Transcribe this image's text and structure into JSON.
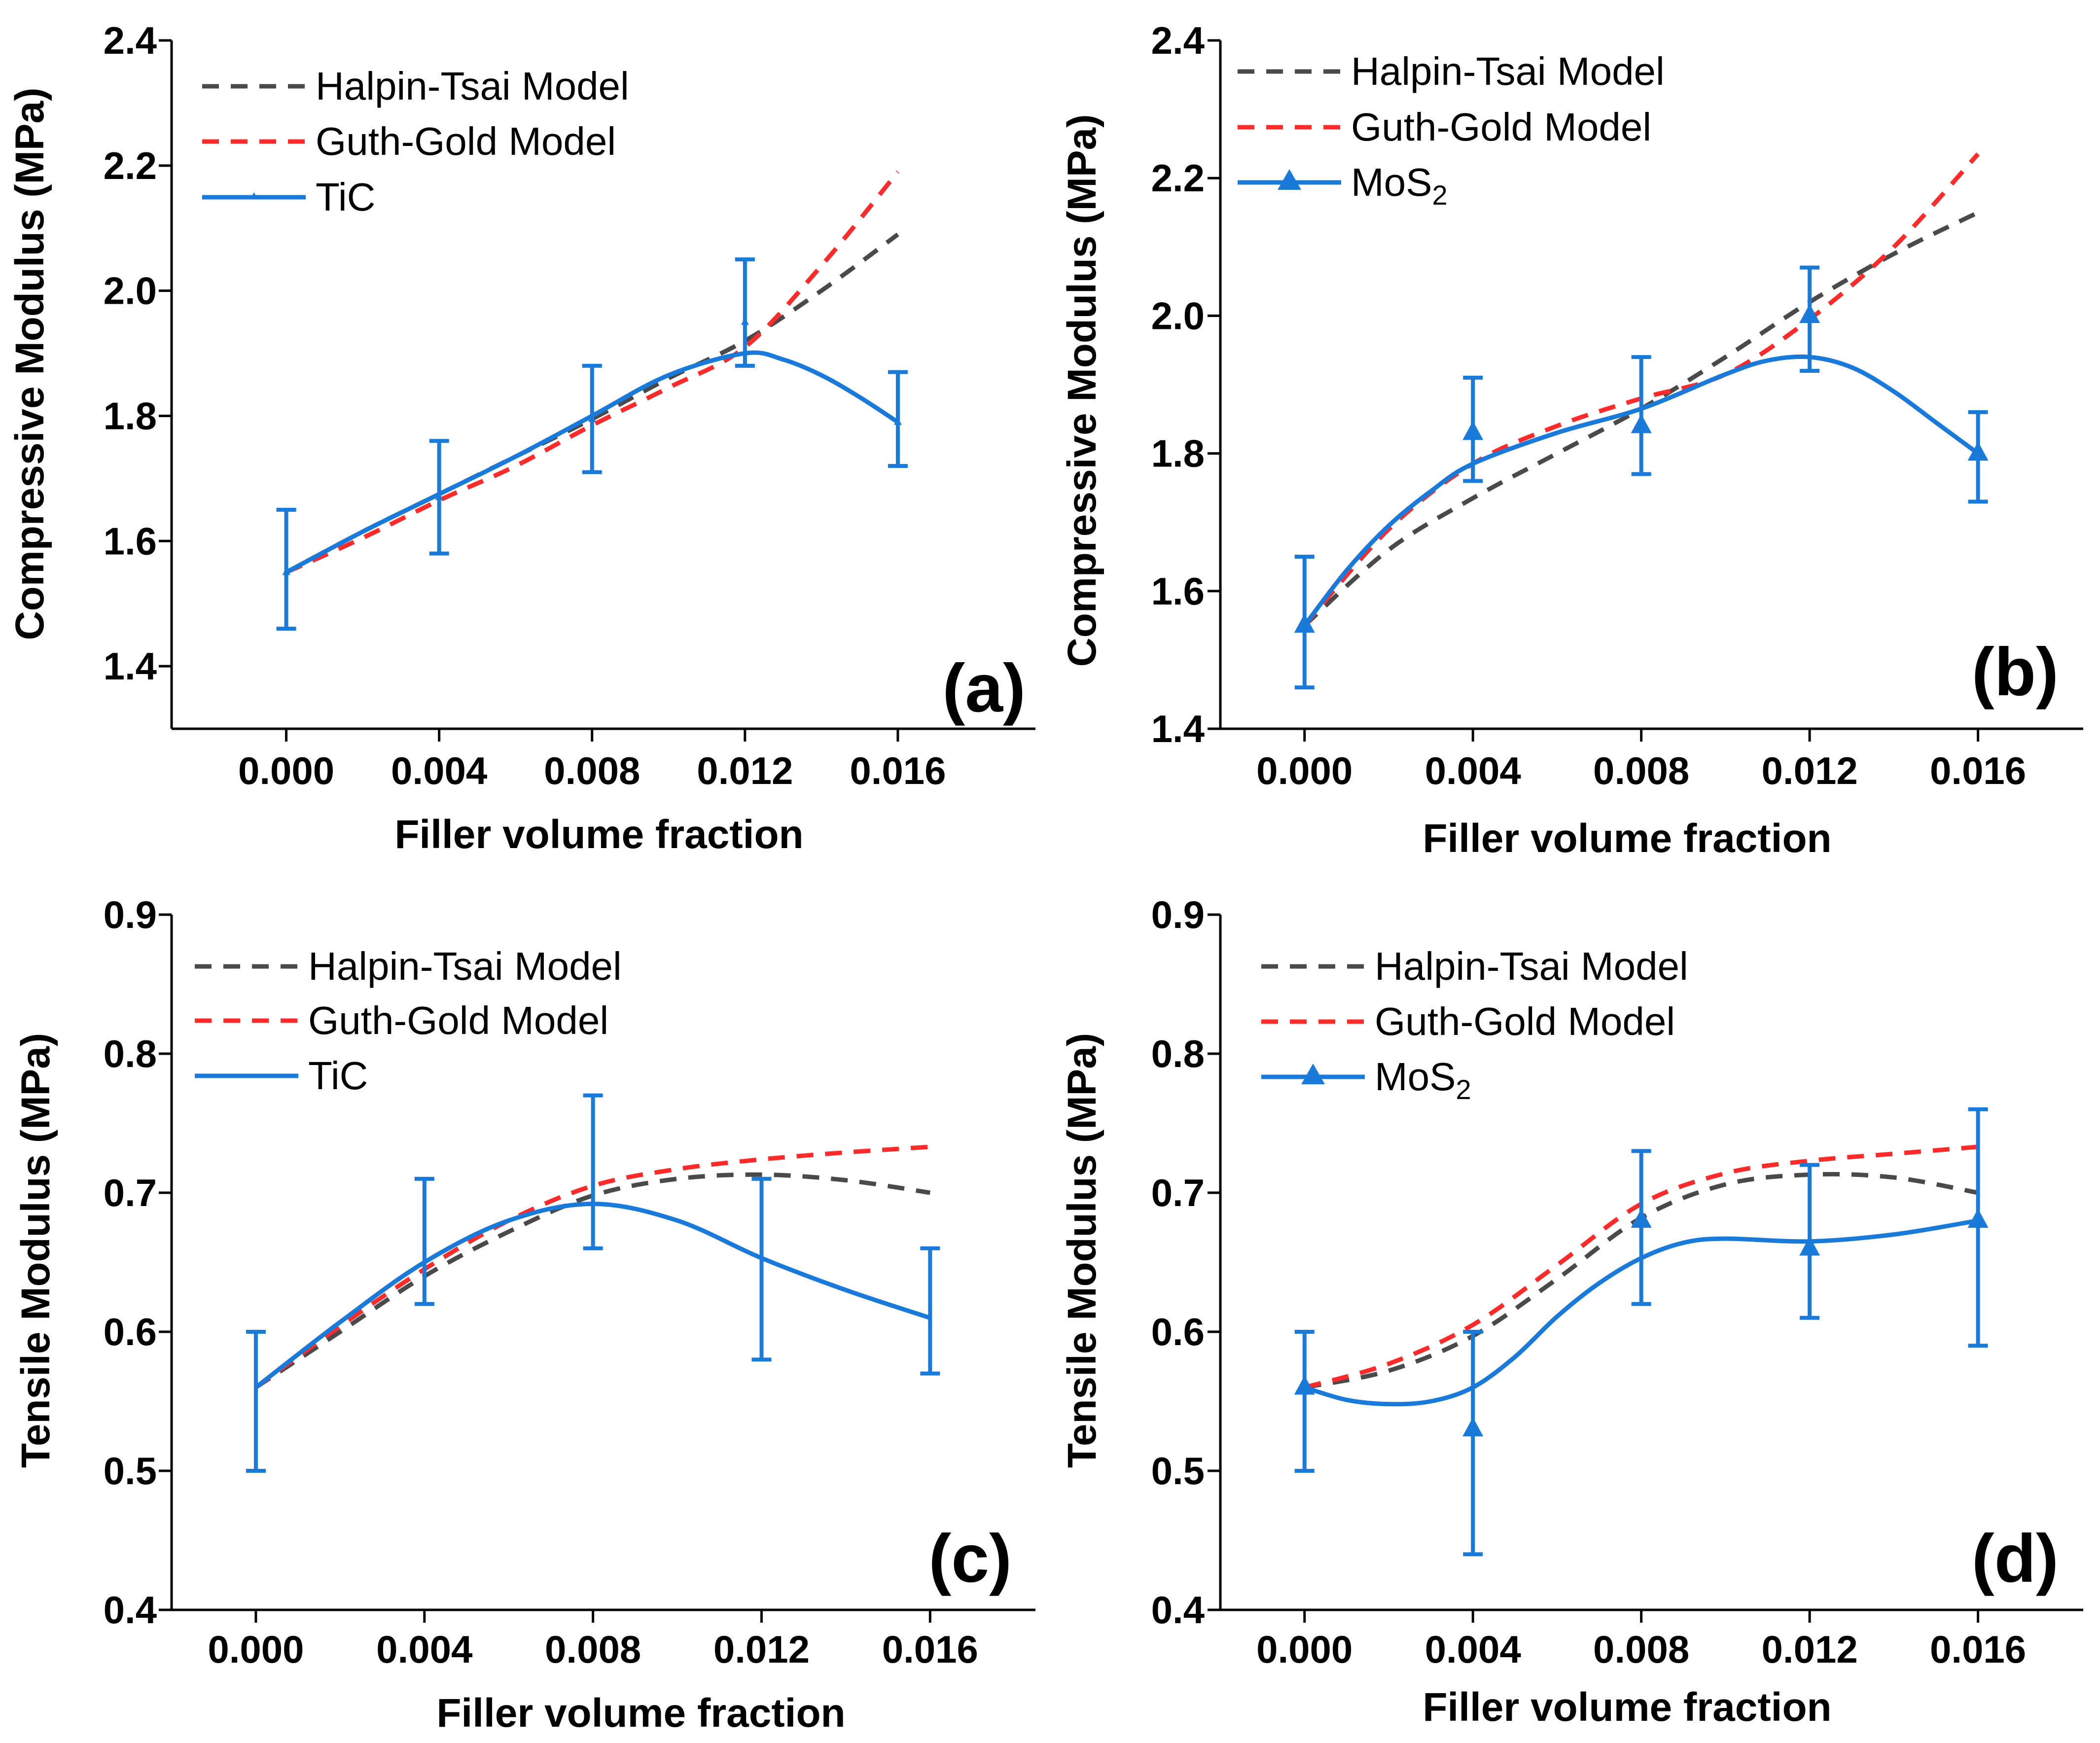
{
  "chart_data": [
    {
      "panel": "(a)",
      "type": "line",
      "xlabel": "Filler volume fraction",
      "ylabel": "Compressive Modulus (MPa)",
      "xlim": [
        -0.003,
        0.0196
      ],
      "ylim": [
        1.3,
        2.4
      ],
      "xticks": [
        "0.000",
        "0.004",
        "0.008",
        "0.012",
        "0.016"
      ],
      "xtick_values": [
        0.0,
        0.004,
        0.008,
        0.012,
        0.016
      ],
      "yticks": [
        "1.4",
        "1.6",
        "1.8",
        "2.0",
        "2.2",
        "2.4"
      ],
      "ytick_values": [
        1.4,
        1.6,
        1.8,
        2.0,
        2.2,
        2.4
      ],
      "legend": [
        "Halpin-Tsai Model",
        "Guth-Gold Model",
        "TiC"
      ],
      "legend_position": "top-left",
      "series": [
        {
          "name": "Halpin-Tsai Model",
          "style": "dashed",
          "color": "#4a4a4a",
          "x": [
            0,
            0.002,
            0.004,
            0.006,
            0.008,
            0.01,
            0.012,
            0.014,
            0.016
          ],
          "y": [
            1.55,
            1.615,
            1.675,
            1.735,
            1.795,
            1.86,
            1.92,
            2.0,
            2.09
          ]
        },
        {
          "name": "Guth-Gold Model",
          "style": "dashed",
          "color": "#ff2a2a",
          "x": [
            0,
            0.002,
            0.004,
            0.006,
            0.008,
            0.01,
            0.012,
            0.014,
            0.016
          ],
          "y": [
            1.55,
            1.605,
            1.665,
            1.72,
            1.785,
            1.845,
            1.91,
            2.04,
            2.19
          ]
        },
        {
          "name": "TiC",
          "style": "solid",
          "color": "#1a7ad9",
          "marker": "triangle",
          "x": [
            0,
            0.004,
            0.008,
            0.012,
            0.016
          ],
          "y": [
            1.55,
            1.67,
            1.795,
            1.95,
            1.79
          ],
          "yerr_low": [
            1.46,
            1.58,
            1.71,
            1.88,
            1.72
          ],
          "yerr_high": [
            1.65,
            1.76,
            1.88,
            2.05,
            1.87
          ],
          "fit_x": [
            0,
            0.002,
            0.004,
            0.006,
            0.008,
            0.01,
            0.012,
            0.013,
            0.014,
            0.015,
            0.016
          ],
          "fit_y": [
            1.55,
            1.615,
            1.675,
            1.735,
            1.8,
            1.865,
            1.9,
            1.89,
            1.865,
            1.83,
            1.79
          ]
        }
      ]
    },
    {
      "panel": "(b)",
      "type": "line",
      "xlabel": "Filler volume fraction",
      "ylabel": "Compressive Modulus (MPa)",
      "xlim": [
        -0.002,
        0.0185
      ],
      "ylim": [
        1.4,
        2.4
      ],
      "xticks": [
        "0.000",
        "0.004",
        "0.008",
        "0.012",
        "0.016"
      ],
      "xtick_values": [
        0.0,
        0.004,
        0.008,
        0.012,
        0.016
      ],
      "yticks": [
        "1.4",
        "1.6",
        "1.8",
        "2.0",
        "2.2",
        "2.4"
      ],
      "ytick_values": [
        1.4,
        1.6,
        1.8,
        2.0,
        2.2,
        2.4
      ],
      "legend": [
        "Halpin-Tsai Model",
        "Guth-Gold Model",
        "MoS",
        "2"
      ],
      "legend_position": "top-left",
      "series": [
        {
          "name": "Halpin-Tsai Model",
          "style": "dashed",
          "color": "#4a4a4a",
          "x": [
            0,
            0.002,
            0.004,
            0.006,
            0.008,
            0.01,
            0.012,
            0.014,
            0.016
          ],
          "y": [
            1.55,
            1.66,
            1.735,
            1.8,
            1.865,
            1.94,
            2.02,
            2.09,
            2.15
          ]
        },
        {
          "name": "Guth-Gold Model",
          "style": "dashed",
          "color": "#ff2a2a",
          "x": [
            0,
            0.002,
            0.004,
            0.006,
            0.008,
            0.01,
            0.012,
            0.014,
            0.016
          ],
          "y": [
            1.55,
            1.69,
            1.785,
            1.84,
            1.88,
            1.915,
            1.995,
            2.1,
            2.235
          ]
        },
        {
          "name": "MoS2",
          "style": "solid",
          "color": "#1a7ad9",
          "marker": "triangle",
          "x": [
            0,
            0.004,
            0.008,
            0.012,
            0.016
          ],
          "y": [
            1.55,
            1.83,
            1.84,
            2.0,
            1.8
          ],
          "yerr_low": [
            1.46,
            1.76,
            1.77,
            1.92,
            1.73
          ],
          "yerr_high": [
            1.65,
            1.91,
            1.94,
            2.07,
            1.86
          ],
          "fit_x": [
            0,
            0.001,
            0.002,
            0.003,
            0.004,
            0.006,
            0.008,
            0.01,
            0.011,
            0.012,
            0.013,
            0.014,
            0.015,
            0.016
          ],
          "fit_y": [
            1.55,
            1.63,
            1.695,
            1.745,
            1.785,
            1.83,
            1.865,
            1.915,
            1.935,
            1.94,
            1.925,
            1.89,
            1.845,
            1.8
          ]
        }
      ]
    },
    {
      "panel": "(c)",
      "type": "line",
      "xlabel": "Filler volume fraction",
      "ylabel": "Tensile Modulus (MPa)",
      "xlim": [
        -0.002,
        0.0185
      ],
      "ylim": [
        0.4,
        0.9
      ],
      "xticks": [
        "0.000",
        "0.004",
        "0.008",
        "0.012",
        "0.016"
      ],
      "xtick_values": [
        0.0,
        0.004,
        0.008,
        0.012,
        0.016
      ],
      "yticks": [
        "0.4",
        "0.5",
        "0.6",
        "0.7",
        "0.8",
        "0.9"
      ],
      "ytick_values": [
        0.4,
        0.5,
        0.6,
        0.7,
        0.8,
        0.9
      ],
      "legend": [
        "Halpin-Tsai Model",
        "Guth-Gold Model",
        "TiC"
      ],
      "legend_position": "top-left",
      "series": [
        {
          "name": "Halpin-Tsai Model",
          "style": "dashed",
          "color": "#4a4a4a",
          "x": [
            0,
            0.002,
            0.004,
            0.006,
            0.008,
            0.01,
            0.012,
            0.014,
            0.016
          ],
          "y": [
            0.56,
            0.6,
            0.64,
            0.672,
            0.698,
            0.71,
            0.713,
            0.709,
            0.7
          ]
        },
        {
          "name": "Guth-Gold Model",
          "style": "dashed",
          "color": "#ff2a2a",
          "x": [
            0,
            0.002,
            0.004,
            0.006,
            0.008,
            0.01,
            0.012,
            0.014,
            0.016
          ],
          "y": [
            0.56,
            0.604,
            0.645,
            0.68,
            0.705,
            0.717,
            0.724,
            0.729,
            0.733
          ]
        },
        {
          "name": "TiC",
          "style": "solid",
          "color": "#1a7ad9",
          "marker": "none",
          "x": [
            0,
            0.004,
            0.008,
            0.012,
            0.016
          ],
          "y": [
            0.56,
            0.65,
            0.69,
            0.655,
            0.61
          ],
          "yerr_low": [
            0.5,
            0.62,
            0.66,
            0.58,
            0.57
          ],
          "yerr_high": [
            0.6,
            0.71,
            0.77,
            0.71,
            0.66
          ],
          "fit_x": [
            0,
            0.002,
            0.004,
            0.006,
            0.008,
            0.01,
            0.012,
            0.014,
            0.016
          ],
          "fit_y": [
            0.56,
            0.607,
            0.65,
            0.68,
            0.692,
            0.68,
            0.653,
            0.63,
            0.61
          ]
        }
      ]
    },
    {
      "panel": "(d)",
      "type": "line",
      "xlabel": "Filler volume fraction",
      "ylabel": "Tensile Modulus (MPa)",
      "xlim": [
        -0.002,
        0.0185
      ],
      "ylim": [
        0.4,
        0.9
      ],
      "xticks": [
        "0.000",
        "0.004",
        "0.008",
        "0.012",
        "0.016"
      ],
      "xtick_values": [
        0.0,
        0.004,
        0.008,
        0.012,
        0.016
      ],
      "yticks": [
        "0.4",
        "0.5",
        "0.6",
        "0.7",
        "0.8",
        "0.9"
      ],
      "ytick_values": [
        0.4,
        0.5,
        0.6,
        0.7,
        0.8,
        0.9
      ],
      "legend": [
        "Halpin-Tsai Model",
        "Guth-Gold Model",
        "MoS",
        "2"
      ],
      "legend_position": "top-left",
      "series": [
        {
          "name": "Halpin-Tsai Model",
          "style": "dashed",
          "color": "#4a4a4a",
          "x": [
            0,
            0.002,
            0.004,
            0.006,
            0.008,
            0.01,
            0.012,
            0.014,
            0.016
          ],
          "y": [
            0.56,
            0.572,
            0.597,
            0.638,
            0.682,
            0.706,
            0.713,
            0.711,
            0.7
          ]
        },
        {
          "name": "Guth-Gold Model",
          "style": "dashed",
          "color": "#ff2a2a",
          "x": [
            0,
            0.002,
            0.004,
            0.006,
            0.008,
            0.01,
            0.012,
            0.014,
            0.016
          ],
          "y": [
            0.56,
            0.577,
            0.605,
            0.648,
            0.692,
            0.714,
            0.723,
            0.728,
            0.733
          ]
        },
        {
          "name": "MoS2",
          "style": "solid",
          "color": "#1a7ad9",
          "marker": "triangle",
          "x": [
            0,
            0.004,
            0.008,
            0.012,
            0.016
          ],
          "y": [
            0.56,
            0.53,
            0.68,
            0.66,
            0.68
          ],
          "yerr_low": [
            0.5,
            0.44,
            0.62,
            0.61,
            0.59
          ],
          "yerr_high": [
            0.6,
            0.6,
            0.73,
            0.72,
            0.76
          ],
          "fit_x": [
            0,
            0.001,
            0.002,
            0.003,
            0.004,
            0.005,
            0.006,
            0.007,
            0.008,
            0.009,
            0.01,
            0.012,
            0.014,
            0.016
          ],
          "fit_y": [
            0.56,
            0.551,
            0.548,
            0.55,
            0.56,
            0.582,
            0.611,
            0.635,
            0.653,
            0.664,
            0.667,
            0.665,
            0.67,
            0.68
          ]
        }
      ]
    }
  ]
}
